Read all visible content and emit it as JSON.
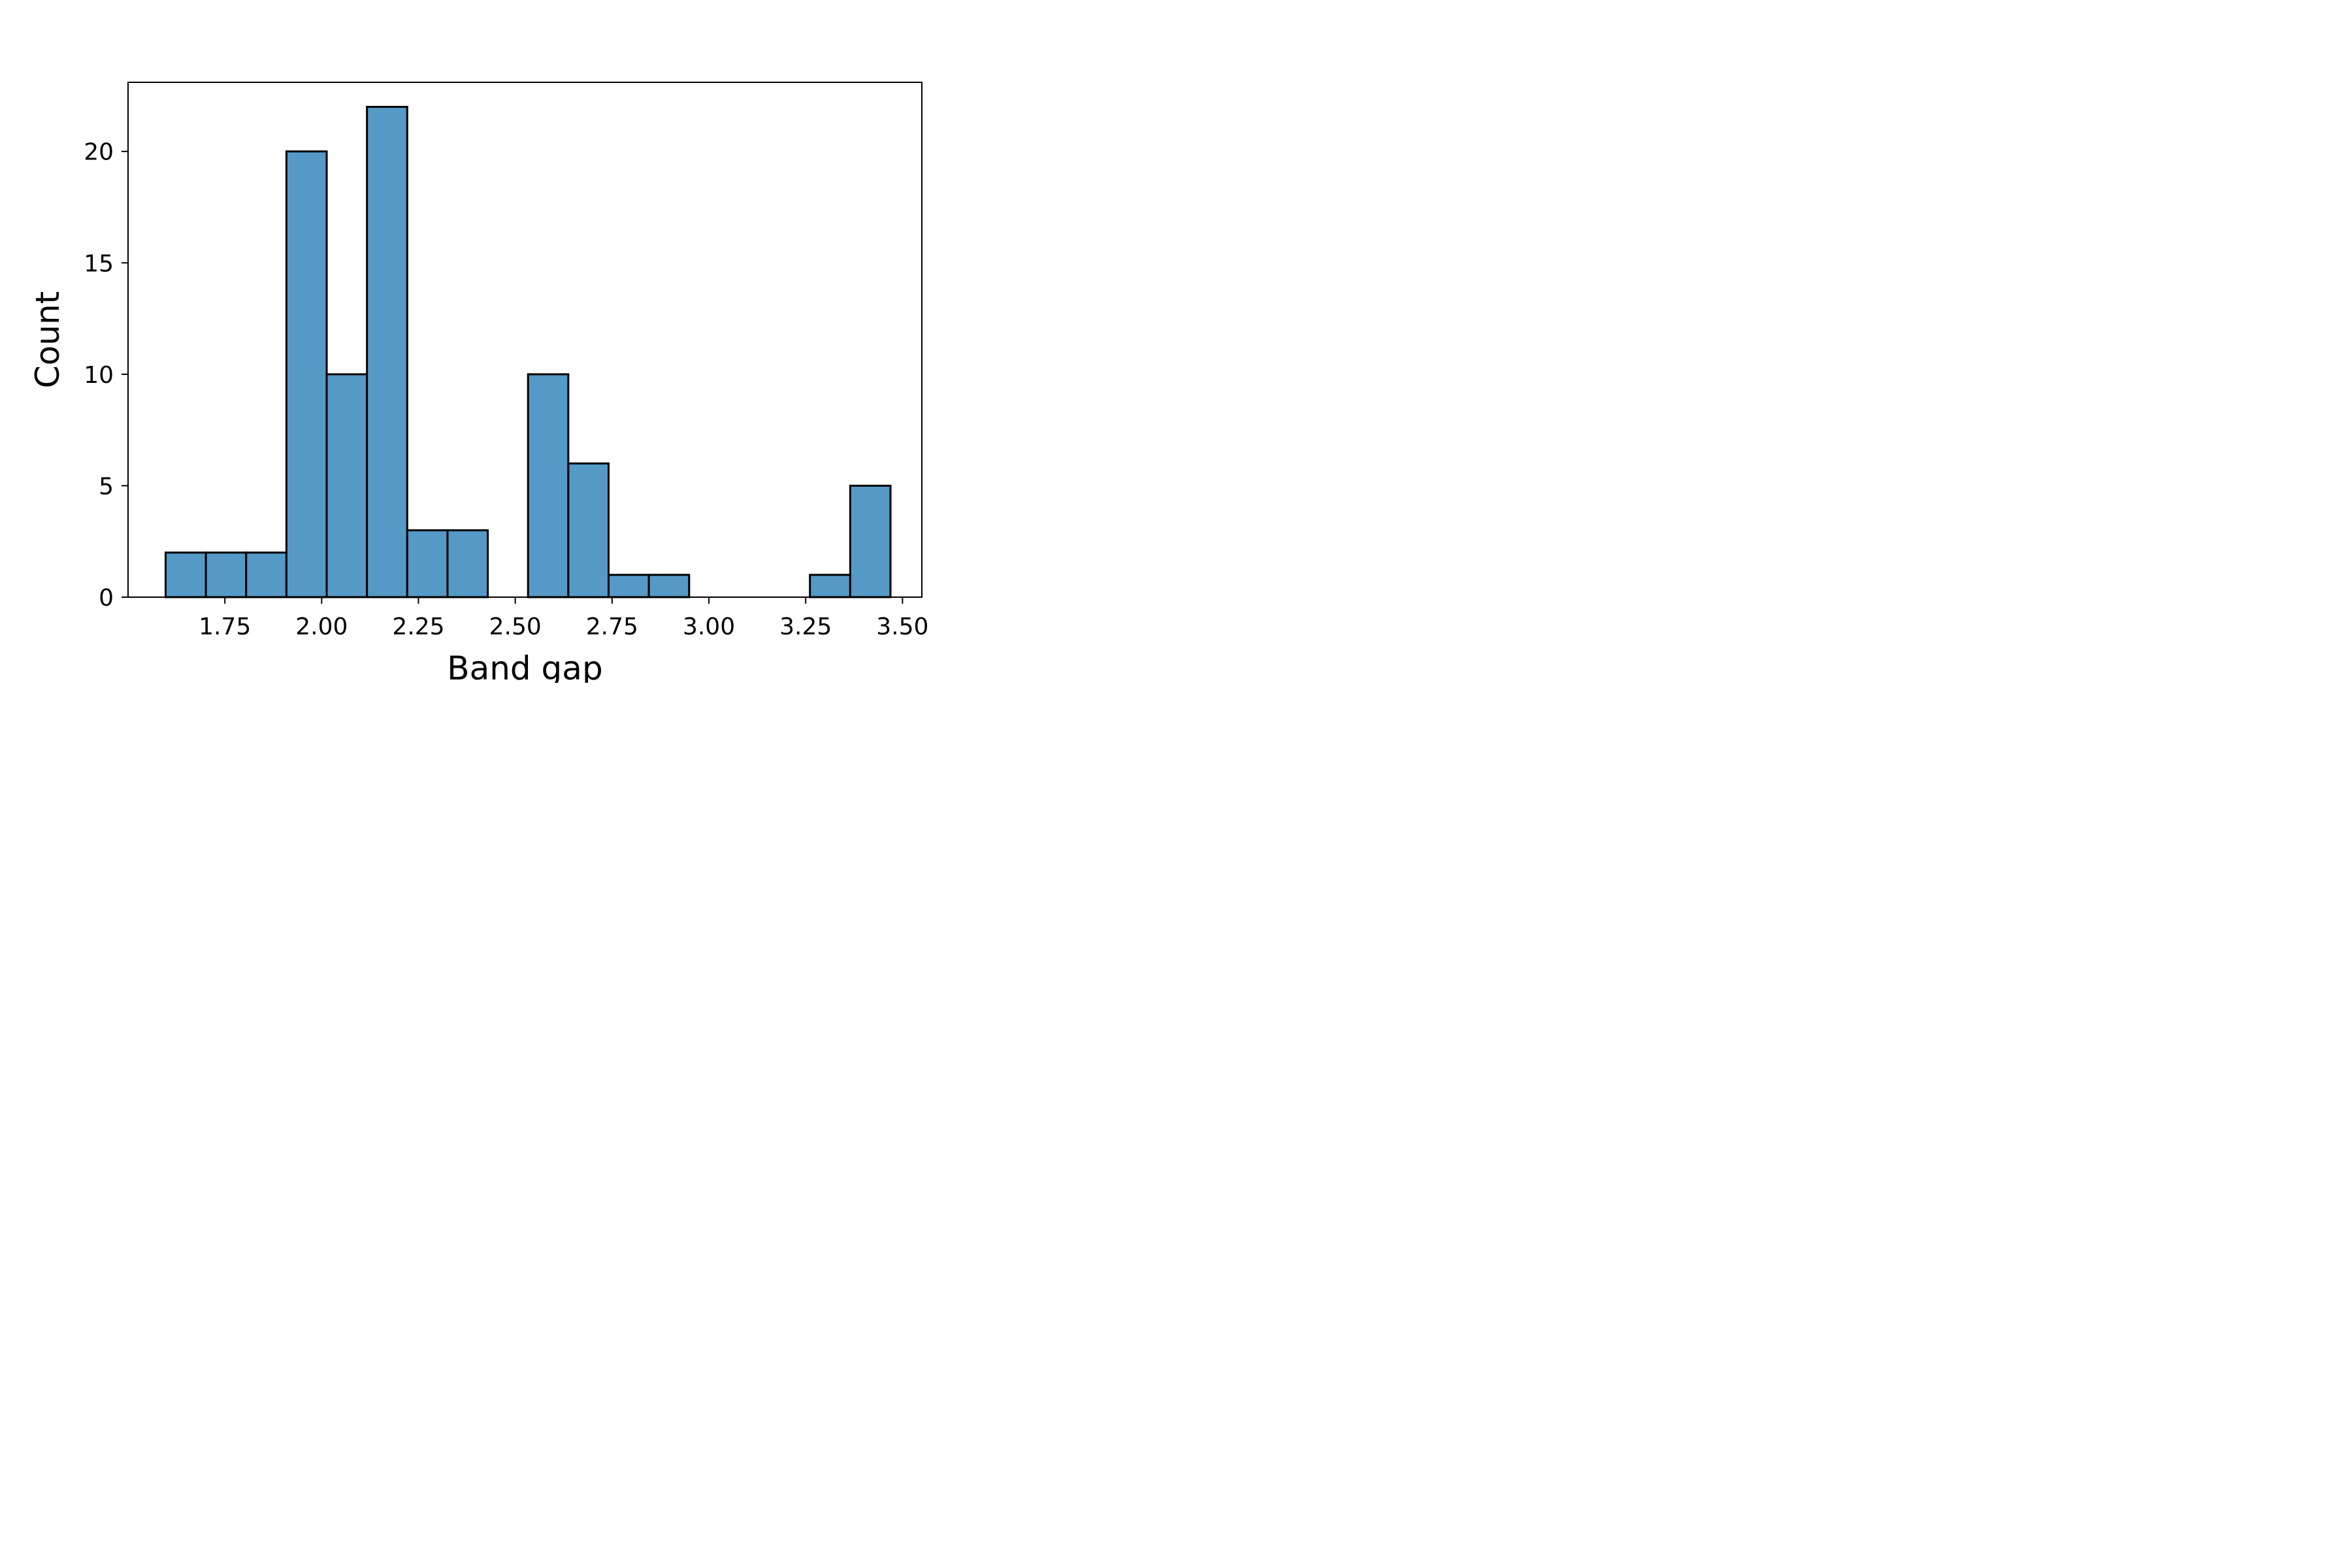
{
  "chart_data": {
    "type": "bar",
    "subtype": "histogram",
    "title": "",
    "xlabel": "Band gap",
    "ylabel": "Count",
    "xlim": [
      1.5,
      3.55
    ],
    "ylim": [
      0,
      23.1
    ],
    "xticks": [
      1.75,
      2.0,
      2.25,
      2.5,
      2.75,
      3.0,
      3.25,
      3.5
    ],
    "xtick_labels": [
      "1.75",
      "2.00",
      "2.25",
      "2.50",
      "2.75",
      "3.00",
      "3.25",
      "3.50"
    ],
    "yticks": [
      0,
      5,
      10,
      15,
      20
    ],
    "ytick_labels": [
      "0",
      "5",
      "10",
      "15",
      "20"
    ],
    "bin_edges": [
      1.597,
      1.701,
      1.805,
      1.909,
      2.013,
      2.117,
      2.221,
      2.325,
      2.429,
      2.533,
      2.637,
      2.741,
      2.845,
      2.949,
      3.053,
      3.157,
      3.261,
      3.365,
      3.469
    ],
    "values": [
      2,
      2,
      2,
      20,
      10,
      22,
      3,
      3,
      0,
      10,
      6,
      1,
      1,
      0,
      0,
      0,
      1,
      5
    ],
    "bar_color": "#5599c7",
    "edge_color": "#000000",
    "grid": false
  }
}
